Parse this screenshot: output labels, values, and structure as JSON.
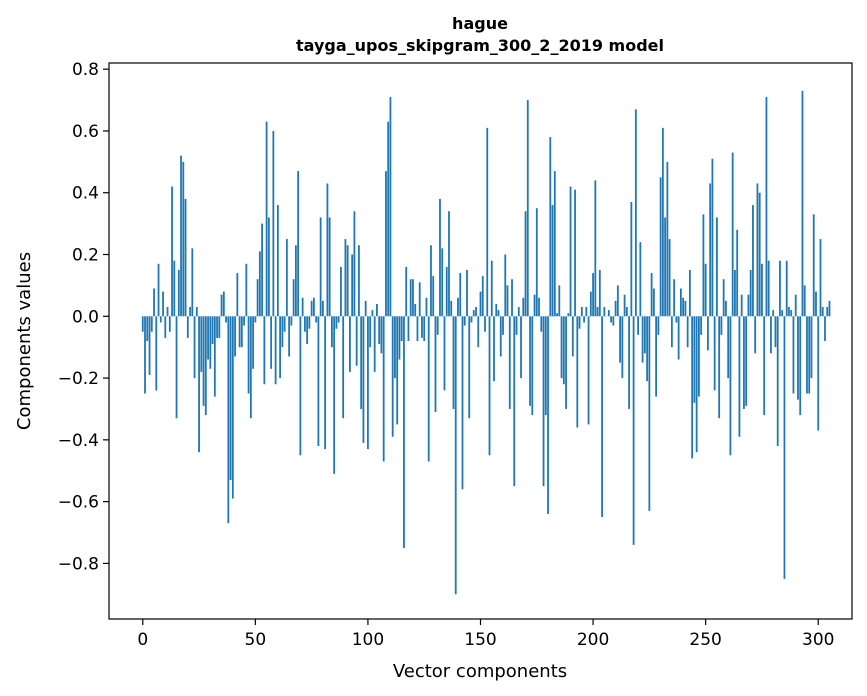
{
  "chart_data": {
    "type": "bar",
    "title": "hague",
    "subtitle": "tayga_upos_skipgram_300_2_2019 model",
    "xlabel": "Vector components",
    "ylabel": "Components values",
    "xlim": [
      -15,
      315
    ],
    "ylim": [
      -0.98,
      0.82
    ],
    "xticks": [
      0,
      50,
      100,
      150,
      200,
      250,
      300
    ],
    "yticks": [
      -0.8,
      -0.6,
      -0.4,
      -0.2,
      0.0,
      0.2,
      0.4,
      0.6,
      0.8
    ],
    "ytick_labels": [
      "−0.8",
      "−0.6",
      "−0.4",
      "−0.2",
      "0.0",
      "0.2",
      "0.4",
      "0.6",
      "0.8"
    ],
    "bar_color": "#1f77b4",
    "values": [
      -0.05,
      -0.25,
      -0.08,
      -0.19,
      -0.05,
      0.09,
      -0.24,
      0.17,
      -0.02,
      0.08,
      -0.07,
      0.03,
      -0.05,
      0.42,
      0.18,
      -0.33,
      0.15,
      0.52,
      0.5,
      0.38,
      -0.07,
      0.03,
      0.22,
      -0.2,
      0.03,
      -0.44,
      -0.18,
      -0.29,
      -0.32,
      -0.14,
      -0.17,
      -0.09,
      -0.26,
      -0.07,
      -0.07,
      0.07,
      0.08,
      -0.02,
      -0.67,
      -0.53,
      -0.59,
      -0.13,
      0.14,
      -0.1,
      -0.1,
      -0.03,
      0.17,
      -0.25,
      -0.33,
      -0.17,
      -0.02,
      0.12,
      0.21,
      0.3,
      -0.22,
      0.63,
      0.32,
      -0.17,
      0.6,
      -0.22,
      0.36,
      -0.2,
      -0.1,
      -0.05,
      0.25,
      -0.13,
      -0.03,
      0.12,
      0.23,
      0.47,
      -0.45,
      0.06,
      -0.05,
      -0.09,
      -0.04,
      0.05,
      0.06,
      -0.02,
      -0.42,
      0.32,
      0.05,
      -0.43,
      0.43,
      0.32,
      -0.1,
      -0.51,
      -0.04,
      -0.02,
      0.16,
      -0.33,
      0.25,
      0.23,
      -0.18,
      0.2,
      0.34,
      -0.16,
      0.23,
      -0.3,
      -0.41,
      0.05,
      -0.43,
      -0.1,
      0.02,
      -0.18,
      0.04,
      -0.09,
      -0.12,
      -0.47,
      0.47,
      0.63,
      0.71,
      -0.39,
      -0.2,
      -0.35,
      -0.14,
      -0.08,
      -0.75,
      0.16,
      -0.08,
      0.12,
      0.12,
      0.04,
      -0.08,
      0.11,
      -0.07,
      -0.08,
      0.06,
      -0.47,
      0.23,
      0.13,
      -0.31,
      -0.06,
      0.38,
      0.22,
      -0.24,
      0.16,
      0.34,
      0.05,
      -0.3,
      -0.9,
      0.06,
      0.14,
      -0.56,
      -0.03,
      0.15,
      -0.33,
      -0.02,
      0.02,
      0.03,
      -0.1,
      0.08,
      0.13,
      -0.05,
      0.61,
      -0.45,
      0.18,
      -0.21,
      0.04,
      0.02,
      -0.13,
      -0.06,
      0.2,
      0.1,
      -0.3,
      0.12,
      -0.55,
      -0.06,
      0.03,
      -0.2,
      0.06,
      0.34,
      0.7,
      -0.29,
      -0.32,
      0.07,
      0.35,
      0.06,
      -0.05,
      -0.55,
      -0.32,
      -0.64,
      0.58,
      0.36,
      0.47,
      0.01,
      0.1,
      -0.2,
      -0.22,
      -0.3,
      0.01,
      0.42,
      -0.13,
      0.41,
      -0.36,
      -0.04,
      0.03,
      -0.02,
      0.03,
      -0.35,
      0.08,
      0.14,
      0.44,
      0.03,
      0.15,
      -0.65,
      0.03,
      0.0,
      0.02,
      -0.02,
      -0.03,
      0.05,
      0.1,
      -0.15,
      -0.2,
      0.07,
      0.03,
      -0.3,
      0.37,
      -0.74,
      0.67,
      -0.06,
      0.24,
      -0.15,
      -0.12,
      -0.21,
      -0.63,
      0.14,
      0.09,
      -0.26,
      -0.06,
      0.45,
      0.61,
      0.32,
      0.5,
      0.25,
      -0.1,
      0.12,
      -0.02,
      -0.14,
      0.09,
      0.06,
      0.05,
      -0.1,
      0.15,
      -0.46,
      -0.28,
      -0.44,
      -0.26,
      -0.06,
      0.33,
      0.17,
      -0.11,
      0.43,
      0.51,
      -0.24,
      0.32,
      -0.33,
      -0.06,
      0.12,
      0.05,
      -0.2,
      -0.45,
      0.53,
      0.15,
      0.28,
      -0.39,
      0.07,
      -0.3,
      -0.29,
      0.07,
      0.15,
      0.36,
      -0.12,
      0.43,
      0.4,
      0.17,
      -0.32,
      0.71,
      0.18,
      -0.12,
      0.02,
      -0.1,
      -0.42,
      0.18,
      0.02,
      -0.85,
      0.18,
      0.03,
      0.02,
      -0.25,
      0.07,
      -0.27,
      -0.32,
      0.73,
      0.1,
      -0.25,
      -0.25,
      -0.2,
      0.33,
      0.08,
      -0.37,
      0.25,
      0.03,
      -0.08,
      0.03,
      0.05
    ]
  }
}
